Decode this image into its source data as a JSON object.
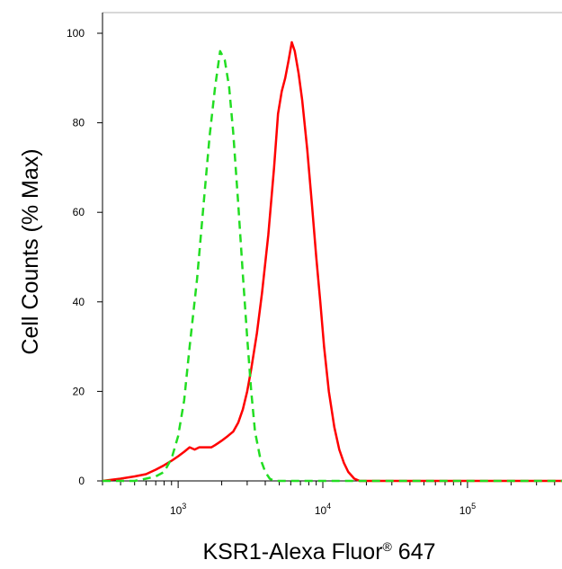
{
  "chart_data": {
    "type": "line",
    "title": "",
    "xlabel": "KSR1-Alexa Fluor",
    "xlabel_superscript": "®",
    "xlabel_suffix": " 647",
    "ylabel": "Cell Counts (% Max)",
    "x_scale": "log",
    "xlim": [
      300,
      450000
    ],
    "ylim": [
      0,
      105
    ],
    "grid": false,
    "y_ticks": [
      0,
      20,
      40,
      60,
      80,
      100
    ],
    "y_tick_labels": [
      "0",
      "20",
      "40",
      "60",
      "80",
      "100"
    ],
    "x_ticks": [
      1000,
      10000,
      100000
    ],
    "x_tick_labels": [
      {
        "base": "10",
        "exp": "3"
      },
      {
        "base": "10",
        "exp": "4"
      },
      {
        "base": "10",
        "exp": "5"
      }
    ],
    "series": [
      {
        "color": "#ff0000",
        "dash": "solid",
        "points": [
          [
            300,
            0
          ],
          [
            400,
            0.5
          ],
          [
            500,
            1
          ],
          [
            600,
            1.5
          ],
          [
            700,
            2.5
          ],
          [
            800,
            3.5
          ],
          [
            900,
            4.5
          ],
          [
            1000,
            5.5
          ],
          [
            1100,
            6.5
          ],
          [
            1200,
            7.5
          ],
          [
            1300,
            7
          ],
          [
            1400,
            7.5
          ],
          [
            1500,
            7.5
          ],
          [
            1600,
            7.5
          ],
          [
            1700,
            7.5
          ],
          [
            1800,
            8
          ],
          [
            1900,
            8.5
          ],
          [
            2000,
            9
          ],
          [
            2200,
            10
          ],
          [
            2400,
            11
          ],
          [
            2600,
            13
          ],
          [
            2800,
            16
          ],
          [
            3000,
            20
          ],
          [
            3200,
            25
          ],
          [
            3500,
            33
          ],
          [
            3800,
            42
          ],
          [
            4200,
            55
          ],
          [
            4600,
            70
          ],
          [
            4900,
            82
          ],
          [
            5200,
            87
          ],
          [
            5500,
            90
          ],
          [
            5800,
            94
          ],
          [
            6100,
            98
          ],
          [
            6400,
            96
          ],
          [
            6800,
            91
          ],
          [
            7200,
            85
          ],
          [
            7800,
            74
          ],
          [
            8400,
            62
          ],
          [
            9000,
            50
          ],
          [
            9600,
            40
          ],
          [
            10200,
            30
          ],
          [
            11000,
            20
          ],
          [
            12000,
            12
          ],
          [
            13000,
            7
          ],
          [
            14000,
            4
          ],
          [
            15000,
            2
          ],
          [
            16500,
            0.5
          ],
          [
            18000,
            0
          ],
          [
            30000,
            0
          ],
          [
            100000,
            0
          ],
          [
            450000,
            0
          ]
        ]
      },
      {
        "color": "#22dd22",
        "dash": "dashed",
        "points": [
          [
            300,
            0
          ],
          [
            500,
            0
          ],
          [
            600,
            0.5
          ],
          [
            700,
            1
          ],
          [
            800,
            2
          ],
          [
            900,
            5
          ],
          [
            1000,
            10
          ],
          [
            1100,
            18
          ],
          [
            1200,
            30
          ],
          [
            1350,
            45
          ],
          [
            1500,
            62
          ],
          [
            1650,
            77
          ],
          [
            1800,
            88
          ],
          [
            1950,
            96
          ],
          [
            2100,
            94
          ],
          [
            2250,
            88
          ],
          [
            2400,
            78
          ],
          [
            2600,
            62
          ],
          [
            2800,
            46
          ],
          [
            3000,
            32
          ],
          [
            3200,
            20
          ],
          [
            3400,
            11
          ],
          [
            3700,
            5
          ],
          [
            4000,
            2
          ],
          [
            4300,
            0.5
          ],
          [
            4600,
            0
          ],
          [
            10000,
            0
          ],
          [
            100000,
            0
          ],
          [
            450000,
            0
          ]
        ]
      }
    ]
  }
}
